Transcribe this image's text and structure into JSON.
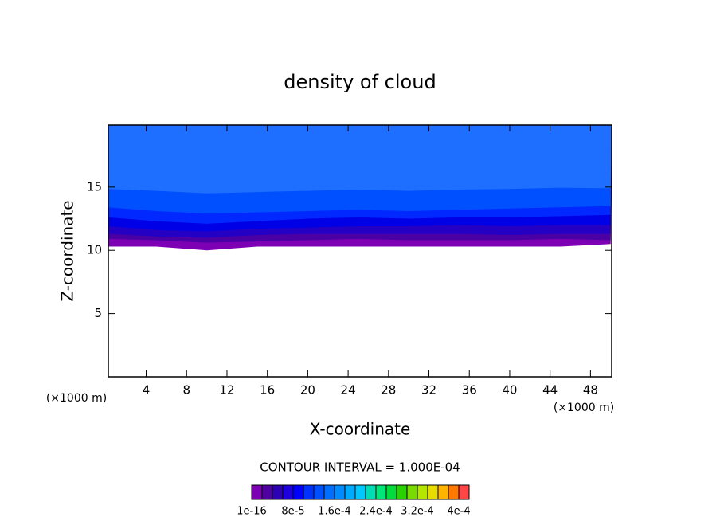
{
  "chart_data": {
    "type": "contour",
    "title": "density of cloud",
    "x_label": "X-coordinate",
    "y_label": "Z-coordinate",
    "x_unit_label": "(×1000 m)",
    "y_unit_label": "(×1000 m)",
    "contour_interval_label": "CONTOUR INTERVAL = 1.000E-04",
    "xlim": [
      0.25,
      50.1
    ],
    "ylim": [
      0,
      19.9
    ],
    "xticks": [
      4,
      8,
      12,
      16,
      20,
      24,
      28,
      32,
      36,
      40,
      44,
      48
    ],
    "yticks": [
      5,
      10,
      15
    ],
    "x": [
      0.25,
      5,
      10,
      15,
      20,
      25,
      30,
      35,
      40,
      45,
      50
    ],
    "series": [
      {
        "color": "#1e6eff",
        "values": [
          14.85,
          14.7,
          14.5,
          14.6,
          14.7,
          14.8,
          14.7,
          14.8,
          14.85,
          14.95,
          14.9
        ]
      },
      {
        "color": "#0050ff",
        "values": [
          13.4,
          13.1,
          12.9,
          13.0,
          13.1,
          13.2,
          13.1,
          13.2,
          13.3,
          13.4,
          13.5
        ]
      },
      {
        "color": "#0028ff",
        "values": [
          12.6,
          12.3,
          12.1,
          12.3,
          12.5,
          12.6,
          12.5,
          12.6,
          12.6,
          12.7,
          12.8
        ]
      },
      {
        "color": "#0000e6",
        "values": [
          11.9,
          11.6,
          11.5,
          11.7,
          11.8,
          11.9,
          11.9,
          12.0,
          11.9,
          12.0,
          12.0
        ]
      },
      {
        "color": "#2300c3",
        "values": [
          11.3,
          11.1,
          11.0,
          11.2,
          11.3,
          11.3,
          11.3,
          11.3,
          11.2,
          11.3,
          11.3
        ]
      },
      {
        "color": "#4b00a5",
        "values": [
          10.9,
          10.8,
          10.6,
          10.7,
          10.8,
          10.9,
          10.8,
          10.8,
          10.8,
          10.9,
          10.8
        ]
      },
      {
        "color": "#7d00b4",
        "values": [
          10.3,
          10.3,
          10.0,
          10.3,
          10.3,
          10.3,
          10.3,
          10.3,
          10.3,
          10.3,
          10.5
        ]
      }
    ],
    "colorbar_colors": [
      "#7d00b4",
      "#5000a0",
      "#2d00b4",
      "#1e00dc",
      "#0000ff",
      "#0032ff",
      "#0050ff",
      "#006eff",
      "#008cff",
      "#00aaff",
      "#00c8ff",
      "#00dcb4",
      "#00e678",
      "#00dc3c",
      "#28d200",
      "#78dc00",
      "#b4e600",
      "#e6dc00",
      "#ffb400",
      "#ff7800",
      "#ff4646"
    ],
    "colorbar_ticks": [
      1e-16,
      {
        "value": 8e-05,
        "label": "8e-5"
      },
      {
        "value": 0.00016,
        "label": "1.6e-4"
      },
      {
        "value": 0.00024,
        "label": "2.4e-4"
      },
      {
        "value": 0.00032,
        "label": "3.2e-4"
      },
      {
        "value": 0.0004,
        "label": "4e-4"
      }
    ]
  }
}
